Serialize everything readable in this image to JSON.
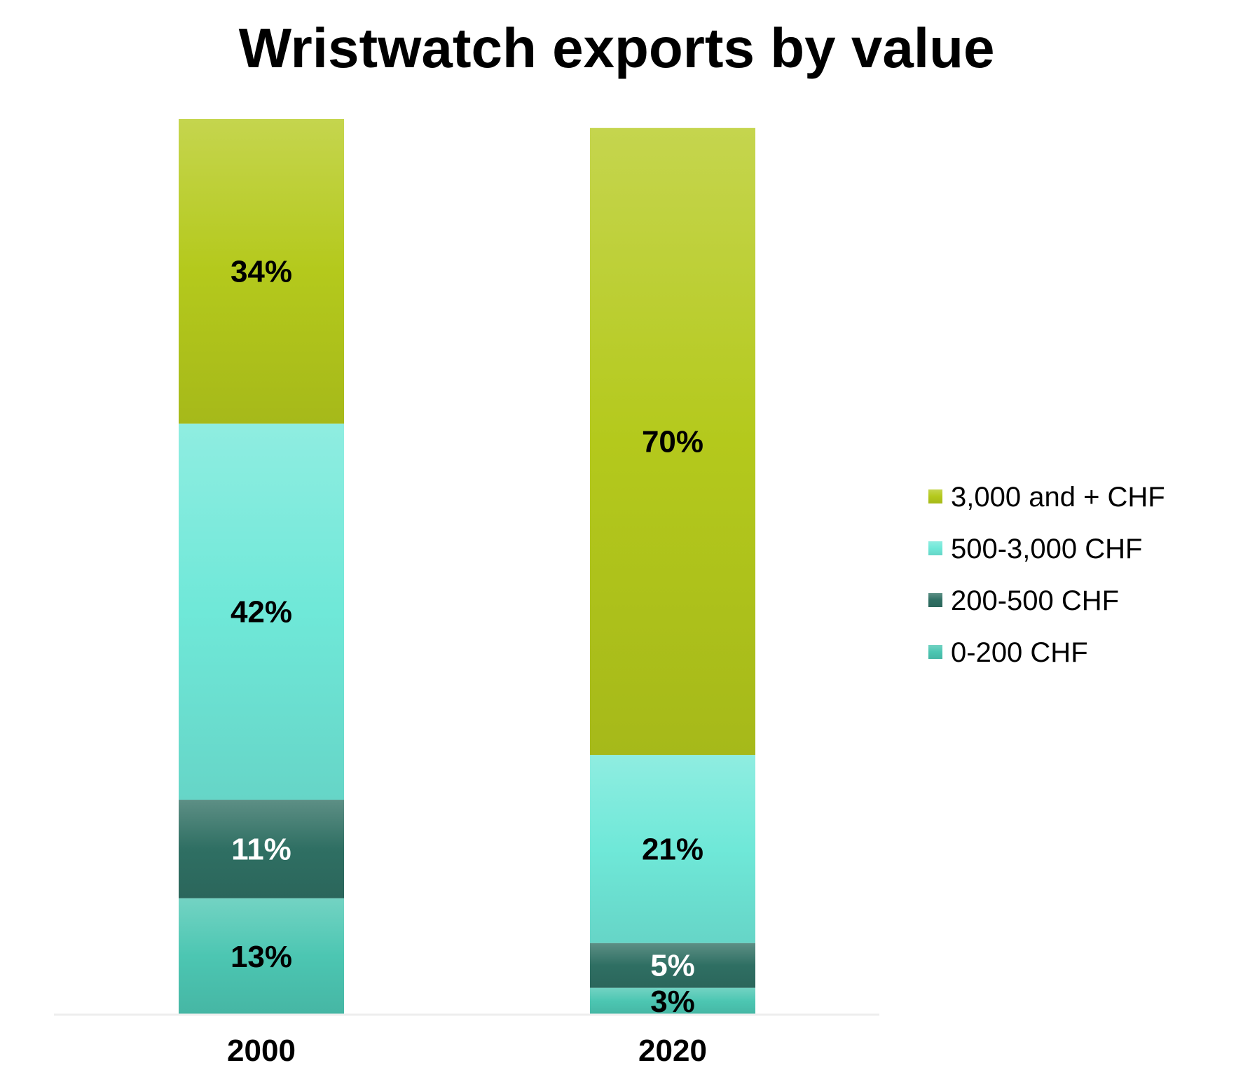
{
  "chart_data": {
    "type": "bar",
    "stacked": true,
    "title": "Wristwatch exports by value",
    "categories": [
      "2000",
      "2020"
    ],
    "series": [
      {
        "name": "0-200 CHF",
        "values": [
          13,
          3
        ],
        "labels": [
          "13%",
          "3%"
        ],
        "color": "#4cc6b2",
        "label_color": "#000000"
      },
      {
        "name": "200-500 CHF",
        "values": [
          11,
          5
        ],
        "labels": [
          "11%",
          "5%"
        ],
        "color": "#2f6f63",
        "label_color": "#ffffff"
      },
      {
        "name": "500-3,000 CHF",
        "values": [
          42,
          21
        ],
        "labels": [
          "42%",
          "21%"
        ],
        "color": "#6fe8d8",
        "label_color": "#000000"
      },
      {
        "name": "3,000 and + CHF",
        "values": [
          34,
          70
        ],
        "labels": [
          "34%",
          "70%"
        ],
        "color": "#b4c91c",
        "label_color": "#000000"
      }
    ],
    "legend_order": [
      "3,000 and + CHF",
      "500-3,000 CHF",
      "200-500 CHF",
      "0-200 CHF"
    ],
    "ylim": [
      0,
      100
    ],
    "xlabel": "",
    "ylabel": "",
    "grid": false,
    "legend_position": "right"
  }
}
